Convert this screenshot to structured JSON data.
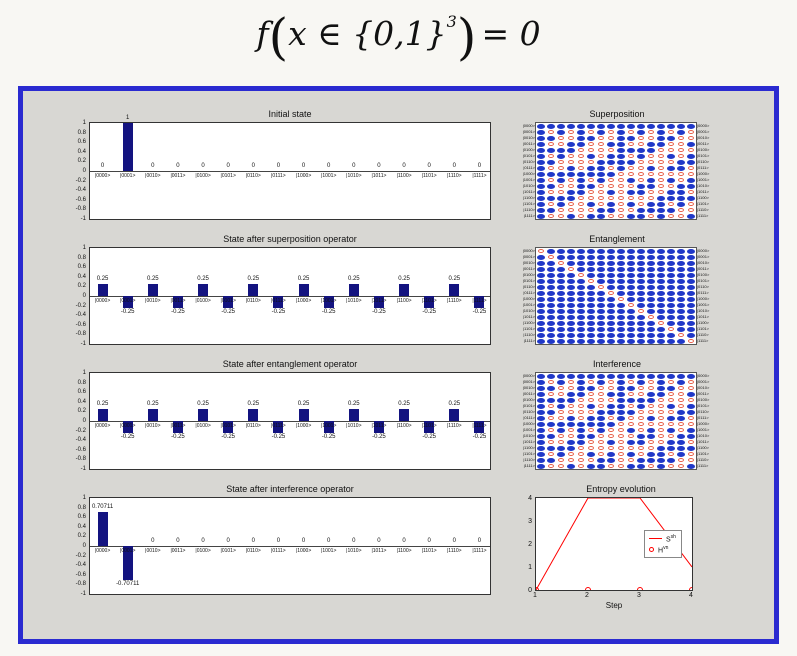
{
  "formula": {
    "func": "f",
    "open_paren": "(",
    "argument": "x ∈ {0,1}",
    "exponent": "3",
    "close_paren": ")",
    "equals": "= 0"
  },
  "figure": {
    "frame_color": "#2a2ad0",
    "bar_color": "#131380",
    "bar_y_ticks": [
      "1",
      "0.8",
      "0.6",
      "0.4",
      "0.2",
      "0",
      "-0.2",
      "-0.4",
      "-0.6",
      "-0.8",
      "-1"
    ]
  },
  "chart_data": [
    {
      "type": "bar",
      "title": "Initial state",
      "ylim": [
        -1,
        1
      ],
      "categories": [
        "|0000>",
        "|0001>",
        "|0010>",
        "|0011>",
        "|0100>",
        "|0101>",
        "|0110>",
        "|0111>",
        "|1000>",
        "|1001>",
        "|1010>",
        "|1011>",
        "|1100>",
        "|1101>",
        "|1110>",
        "|1111>"
      ],
      "values": [
        0,
        1,
        0,
        0,
        0,
        0,
        0,
        0,
        0,
        0,
        0,
        0,
        0,
        0,
        0,
        0
      ],
      "value_labels": [
        "0",
        "1",
        "0",
        "0",
        "0",
        "0",
        "0",
        "0",
        "0",
        "0",
        "0",
        "0",
        "0",
        "0",
        "0",
        "0"
      ]
    },
    {
      "type": "bar",
      "title": "State after superposition operator",
      "ylim": [
        -1,
        1
      ],
      "categories": [
        "|0000>",
        "|0001>",
        "|0010>",
        "|0011>",
        "|0100>",
        "|0101>",
        "|0110>",
        "|0111>",
        "|1000>",
        "|1001>",
        "|1010>",
        "|1011>",
        "|1100>",
        "|1101>",
        "|1110>",
        "|1111>"
      ],
      "values": [
        0.25,
        -0.25,
        0.25,
        -0.25,
        0.25,
        -0.25,
        0.25,
        -0.25,
        0.25,
        -0.25,
        0.25,
        -0.25,
        0.25,
        -0.25,
        0.25,
        -0.25
      ],
      "value_labels": [
        "0.25",
        "-0.25",
        "0.25",
        "-0.25",
        "0.25",
        "-0.25",
        "0.25",
        "-0.25",
        "0.25",
        "-0.25",
        "0.25",
        "-0.25",
        "0.25",
        "-0.25",
        "0.25",
        "-0.25"
      ]
    },
    {
      "type": "bar",
      "title": "State after entanglement operator",
      "ylim": [
        -1,
        1
      ],
      "categories": [
        "|0000>",
        "|0001>",
        "|0010>",
        "|0011>",
        "|0100>",
        "|0101>",
        "|0110>",
        "|0111>",
        "|1000>",
        "|1001>",
        "|1010>",
        "|1011>",
        "|1100>",
        "|1101>",
        "|1110>",
        "|1111>"
      ],
      "values": [
        0.25,
        -0.25,
        0.25,
        -0.25,
        0.25,
        -0.25,
        0.25,
        -0.25,
        0.25,
        -0.25,
        0.25,
        -0.25,
        0.25,
        -0.25,
        0.25,
        -0.25
      ],
      "value_labels": [
        "0.25",
        "-0.25",
        "0.25",
        "-0.25",
        "0.25",
        "-0.25",
        "0.25",
        "-0.25",
        "0.25",
        "-0.25",
        "0.25",
        "-0.25",
        "0.25",
        "-0.25",
        "0.25",
        "-0.25"
      ]
    },
    {
      "type": "bar",
      "title": "State after interference operator",
      "ylim": [
        -1,
        1
      ],
      "categories": [
        "|0000>",
        "|0001>",
        "|0010>",
        "|0011>",
        "|0100>",
        "|0101>",
        "|0110>",
        "|0111>",
        "|1000>",
        "|1001>",
        "|1010>",
        "|1011>",
        "|1100>",
        "|1101>",
        "|1110>",
        "|1111>"
      ],
      "values": [
        0.70711,
        -0.70711,
        0,
        0,
        0,
        0,
        0,
        0,
        0,
        0,
        0,
        0,
        0,
        0,
        0,
        0
      ],
      "value_labels": [
        "0.70711",
        "-0.70711",
        "0",
        "0",
        "0",
        "0",
        "0",
        "0",
        "0",
        "0",
        "0",
        "0",
        "0",
        "0",
        "0",
        "0"
      ]
    },
    {
      "type": "heatmap",
      "title": "Superposition",
      "positive_marker_color": "#2038c8",
      "negative_marker_color": "#e8604a",
      "axis_labels": [
        "|0000>",
        "|0001>",
        "|0010>",
        "|0011>",
        "|0100>",
        "|0101>",
        "|0110>",
        "|0111>",
        "|1000>",
        "|1001>",
        "|1010>",
        "|1011>",
        "|1100>",
        "|1101>",
        "|1110>",
        "|1111>"
      ],
      "sign_rows": [
        "++++++++++++++++",
        "+-+-+-+-+-+-+-+-",
        "++--++--++--++--",
        "+--++--++--++--+",
        "++++----++++----",
        "+-+--+-++-+--+-+",
        "++----++++----++",
        "+--+-++-+--+-++-",
        "++++++++--------",
        "+-+-+-+--+-+-+-+",
        "++--++----++--++",
        "+--++--+-++--++-",
        "++++--------++++",
        "+-+--+-+-+-++-+-",
        "++----++--++++--",
        "+--+-++--++-+--+"
      ]
    },
    {
      "type": "heatmap",
      "title": "Entanglement",
      "positive_marker_color": "#2038c8",
      "negative_marker_color": "#e8604a",
      "axis_labels": [
        "|0000>",
        "|0001>",
        "|0010>",
        "|0011>",
        "|0100>",
        "|0101>",
        "|0110>",
        "|0111>",
        "|1000>",
        "|1001>",
        "|1010>",
        "|1011>",
        "|1100>",
        "|1101>",
        "|1110>",
        "|1111>"
      ],
      "sign_rows": [
        "-+++++++++++++++",
        "+-++++++++++++++",
        "++-+++++++++++++",
        "+++-++++++++++++",
        "++++-+++++++++++",
        "+++++-++++++++++",
        "++++++-+++++++++",
        "+++++++-++++++++",
        "++++++++-+++++++",
        "+++++++++-++++++",
        "++++++++++-+++++",
        "+++++++++++-++++",
        "++++++++++++-+++",
        "+++++++++++++-++",
        "++++++++++++++-+",
        "+++++++++++++++-"
      ]
    },
    {
      "type": "heatmap",
      "title": "Interference",
      "positive_marker_color": "#2038c8",
      "negative_marker_color": "#e8604a",
      "axis_labels": [
        "|0000>",
        "|0001>",
        "|0010>",
        "|0011>",
        "|0100>",
        "|0101>",
        "|0110>",
        "|0111>",
        "|1000>",
        "|1001>",
        "|1010>",
        "|1011>",
        "|1100>",
        "|1101>",
        "|1110>",
        "|1111>"
      ],
      "sign_rows": [
        "++++++++++++++++",
        "+-+-+-+-+-+-+-+-",
        "++--++--++--++--",
        "+--++--++--++--+",
        "++++----++++----",
        "+-+--+-++-+--+-+",
        "++----++++----++",
        "+--+-++-+--+-++-",
        "++++++++--------",
        "+-+-+-+--+-+-+-+",
        "++--++----++--++",
        "+--++--+-++--++-",
        "++++--------++++",
        "+-+--+-+-+-++-+-",
        "++----++--++++--",
        "+--+-++--++-+--+"
      ]
    },
    {
      "type": "line",
      "title": "Entropy evolution",
      "xlabel": "Step",
      "x": [
        1,
        2,
        3,
        4
      ],
      "x_ticks": [
        "1",
        "2",
        "3",
        "4"
      ],
      "y_ticks": [
        "0",
        "1",
        "2",
        "3",
        "4"
      ],
      "ylim": [
        0,
        4
      ],
      "xlim": [
        1,
        4
      ],
      "legend_position": "middle-right",
      "series": [
        {
          "label_base": "S",
          "label_sup": "sh",
          "marker": "line",
          "color": "#ff0000",
          "values": [
            0,
            4,
            4,
            1
          ]
        },
        {
          "label_base": "H",
          "label_sup": "vn",
          "marker": "circle",
          "color": "#ff0000",
          "values": [
            0,
            0,
            0,
            0
          ]
        }
      ]
    }
  ]
}
